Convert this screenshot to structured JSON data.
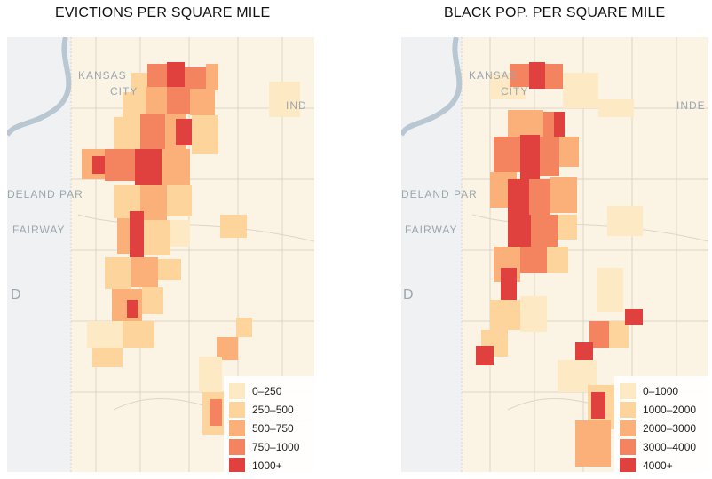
{
  "maps": [
    {
      "id": "evictions",
      "title": "EVICTIONS PER SQUARE MILE",
      "place_labels": {
        "kansas": "KANSAS",
        "city": "CITY",
        "ind": "IND",
        "park": "DELAND PAR",
        "fairway": "FAIRWAY",
        "d": "D"
      },
      "legend": [
        {
          "label": "0–250",
          "color": "#fde9c4"
        },
        {
          "label": "250–500",
          "color": "#fdd49b"
        },
        {
          "label": "500–750",
          "color": "#fbb07a"
        },
        {
          "label": "750–1000",
          "color": "#f3845f"
        },
        {
          "label": "1000+",
          "color": "#e0413f"
        }
      ]
    },
    {
      "id": "black-pop",
      "title": "BLACK POP. PER SQUARE MILE",
      "place_labels": {
        "kansas": "KANSAS",
        "city": "CITY",
        "ind": "INDE",
        "park": "DELAND PAR",
        "fairway": "FAIRWAY",
        "d": "D"
      },
      "legend": [
        {
          "label": "0–1000",
          "color": "#fde9c4"
        },
        {
          "label": "1000–2000",
          "color": "#fdd49b"
        },
        {
          "label": "2000–3000",
          "color": "#fbb07a"
        },
        {
          "label": "3000–4000",
          "color": "#f3845f"
        },
        {
          "label": "4000+",
          "color": "#e0413f"
        }
      ]
    }
  ]
}
